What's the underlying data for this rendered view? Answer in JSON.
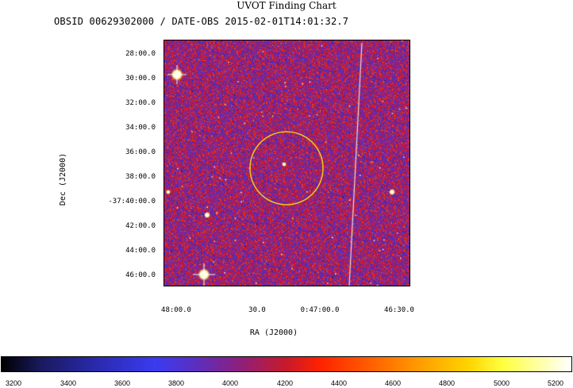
{
  "chart_title": "UVOT Finding Chart",
  "subtitle": "OBSID 00629302000 / DATE-OBS 2015-02-01T14:01:32.7",
  "dec_axis": {
    "label": "Dec  (J2000)",
    "ticks": [
      "28:00.0",
      "30:00.0",
      "32:00.0",
      "34:00.0",
      "36:00.0",
      "38:00.0",
      "-37:40:00.0",
      "42:00.0",
      "44:00.0",
      "46:00.0"
    ]
  },
  "ra_axis": {
    "label": "RA  (J2000)",
    "ticks": [
      "48:00.0",
      "30.0",
      "0:47:00.0",
      "46:30.0"
    ]
  },
  "colorbar": {
    "ticks": [
      "3200",
      "3400",
      "3600",
      "3800",
      "4000",
      "4200",
      "4400",
      "4600",
      "4800",
      "5000",
      "5200"
    ]
  },
  "colors": {
    "circle": "#e8c020",
    "background": "#ffffff"
  }
}
